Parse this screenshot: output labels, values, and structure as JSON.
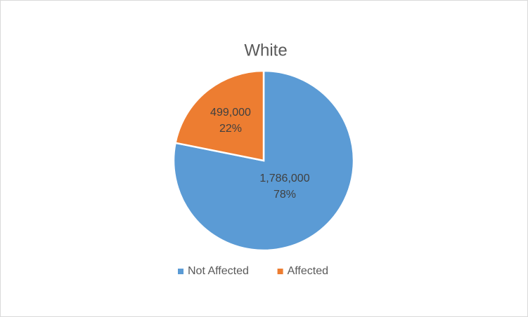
{
  "chart_data": {
    "type": "pie",
    "title": "White",
    "categories": [
      "Not Affected",
      "Affected"
    ],
    "values": [
      1786000,
      499000
    ],
    "value_labels": [
      "1,786,000",
      "499,000"
    ],
    "percents": [
      78,
      22
    ],
    "percent_labels": [
      "78%",
      "22%"
    ],
    "colors": [
      "#5b9bd5",
      "#ed7d31"
    ],
    "legend": "bottom"
  }
}
